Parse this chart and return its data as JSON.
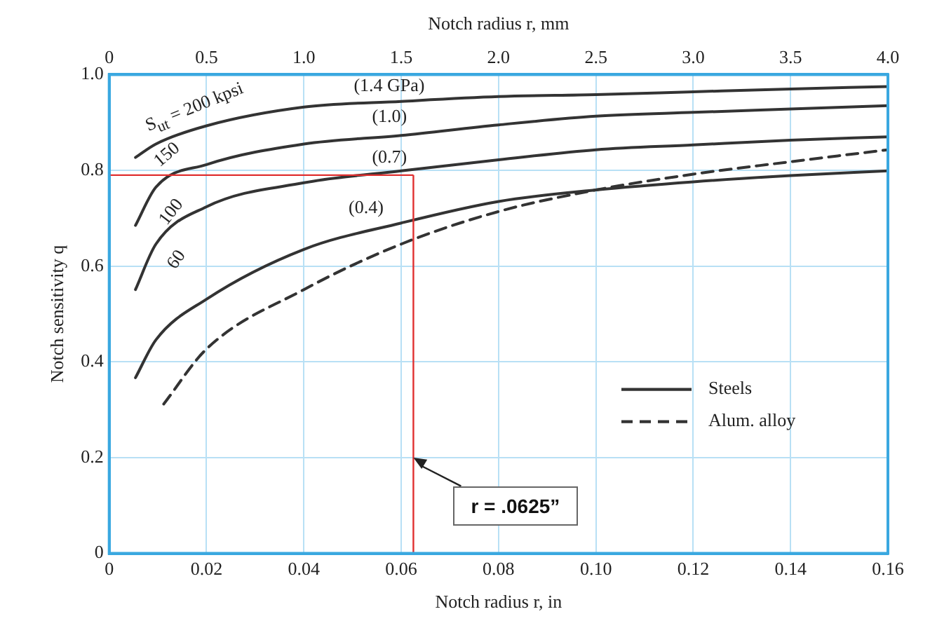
{
  "chart_data": {
    "type": "line",
    "xlabel": "Notch radius r, in",
    "ylabel": "Notch sensitivity q",
    "x2label": "Notch radius r, mm",
    "xlim": [
      0,
      0.16
    ],
    "xticks": [
      0,
      0.02,
      0.04,
      0.06,
      0.08,
      {
        "value": 0.1,
        "label": "0.10"
      },
      0.12,
      0.14,
      0.16
    ],
    "x2lim": [
      0,
      4.0
    ],
    "x2ticks": [
      0,
      0.5,
      {
        "value": 1,
        "label": "1.0"
      },
      1.5,
      {
        "value": 2,
        "label": "2.0"
      },
      2.5,
      {
        "value": 3,
        "label": "3.0"
      },
      3.5,
      {
        "value": 4,
        "label": "4.0"
      }
    ],
    "ylim": [
      0,
      1
    ],
    "yticks": [
      0,
      0.2,
      0.4,
      0.6,
      0.8,
      {
        "value": 1,
        "label": "1.0"
      }
    ],
    "grid": true,
    "legend": "bottom right",
    "marker": "none",
    "series": [
      {
        "name": "Steels",
        "color": "#333333",
        "line_style": "solid",
        "x": [
          0.0054,
          0.0096,
          0.02,
          0.04,
          0.06,
          0.08,
          0.1,
          0.12,
          0.14,
          0.16
        ],
        "values": [
          0.827,
          0.855,
          0.893,
          0.932,
          0.944,
          0.954,
          0.958,
          0.964,
          0.97,
          0.975
        ]
      },
      {
        "color": "#333333",
        "line_style": "solid",
        "x": [
          0.0054,
          0.0096,
          0.02,
          0.04,
          0.06,
          0.08,
          0.1,
          0.12,
          0.14,
          0.16
        ],
        "values": [
          0.685,
          0.765,
          0.812,
          0.855,
          0.873,
          0.895,
          0.913,
          0.921,
          0.928,
          0.935
        ]
      },
      {
        "color": "#333333",
        "line_style": "solid",
        "x": [
          0.0054,
          0.0096,
          0.02,
          0.04,
          0.06,
          0.08,
          0.1,
          0.12,
          0.14,
          0.16
        ],
        "values": [
          0.551,
          0.646,
          0.724,
          0.774,
          0.799,
          0.822,
          0.843,
          0.853,
          0.863,
          0.87
        ]
      },
      {
        "color": "#333333",
        "line_style": "solid",
        "x": [
          0.0054,
          0.0096,
          0.02,
          0.04,
          0.06,
          0.08,
          0.1,
          0.12,
          0.14,
          0.16
        ],
        "values": [
          0.367,
          0.446,
          0.531,
          0.635,
          0.69,
          0.735,
          0.759,
          0.776,
          0.789,
          0.799
        ]
      },
      {
        "name": "Alum. alloy",
        "color": "#333333",
        "line_style": "dashed",
        "x": [
          0.0112,
          0.02,
          0.04,
          0.06,
          0.08,
          0.1,
          0.12,
          0.14,
          0.16
        ],
        "values": [
          0.312,
          0.427,
          0.551,
          0.646,
          0.714,
          0.759,
          0.792,
          0.818,
          0.843
        ]
      }
    ],
    "ref_lines": [
      {
        "axis": "x",
        "value": 0.0625,
        "label": "r = .0625”",
        "color": "#e03030"
      },
      {
        "axis": "y",
        "value": 0.79,
        "color": "#e03030"
      }
    ],
    "annotations": [
      "S$_{ut}$ = 200 kpsi",
      "(1.4 GPa)",
      "150",
      "(1.0)",
      "100",
      "(0.7)",
      "60",
      "(0.4)"
    ]
  }
}
